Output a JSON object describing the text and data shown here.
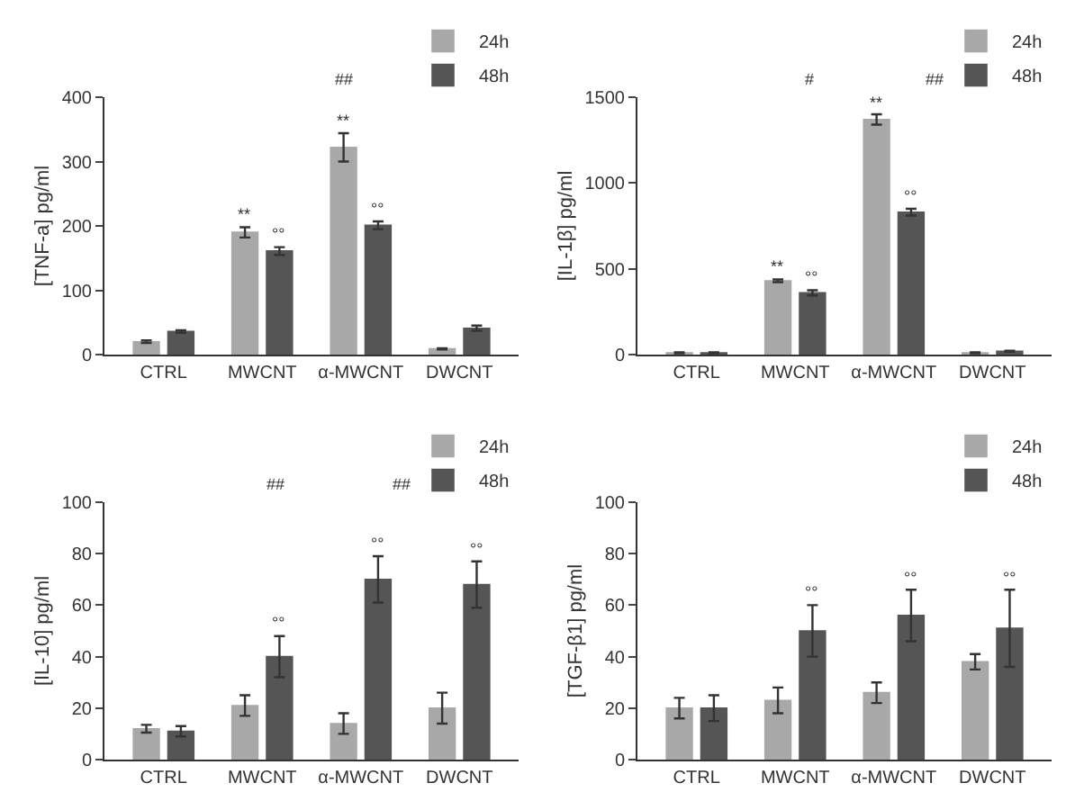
{
  "chart_data": [
    {
      "type": "bar",
      "ylabel": "[TNF-a] pg/ml",
      "categories": [
        "CTRL",
        "MWCNT",
        "α-MWCNT",
        "DWCNT"
      ],
      "ylim": [
        0,
        400
      ],
      "yticks": [
        0,
        100,
        200,
        300,
        400
      ],
      "legend": "top right",
      "series": [
        {
          "name": "24h",
          "color": "#a8a8a8",
          "values": [
            20,
            190,
            322,
            9
          ],
          "errors": [
            2,
            8,
            22,
            1
          ],
          "value_labels": [
            null,
            "**",
            "**",
            null
          ]
        },
        {
          "name": "48h",
          "color": "#555555",
          "values": [
            36,
            161,
            201,
            41
          ],
          "errors": [
            2,
            6,
            6,
            4
          ],
          "value_labels": [
            null,
            "°°",
            "°°",
            null
          ]
        }
      ],
      "annotations": [
        "##"
      ]
    },
    {
      "type": "bar",
      "ylabel": "[IL-1β] pg/ml",
      "categories": [
        "CTRL",
        "MWCNT",
        "α-MWCNT",
        "DWCNT"
      ],
      "ylim": [
        0,
        1500
      ],
      "yticks": [
        0,
        500,
        1000,
        1500
      ],
      "legend": "top right",
      "series": [
        {
          "name": "24h",
          "color": "#a8a8a8",
          "values": [
            10,
            430,
            1370,
            10
          ],
          "errors": [
            3,
            8,
            30,
            3
          ],
          "value_labels": [
            null,
            "**",
            "**",
            null
          ]
        },
        {
          "name": "48h",
          "color": "#555555",
          "values": [
            10,
            360,
            830,
            20
          ],
          "errors": [
            3,
            15,
            20,
            3
          ],
          "value_labels": [
            null,
            "°°",
            "°°",
            null
          ]
        }
      ],
      "annotations": [
        "#",
        "##"
      ]
    },
    {
      "type": "bar",
      "ylabel": "[IL-10] pg/ml",
      "categories": [
        "CTRL",
        "MWCNT",
        "α-MWCNT",
        "DWCNT"
      ],
      "ylim": [
        0,
        100
      ],
      "yticks": [
        0,
        20,
        40,
        60,
        80,
        100
      ],
      "legend": "top right",
      "series": [
        {
          "name": "24h",
          "color": "#a8a8a8",
          "values": [
            12,
            21,
            14,
            20
          ],
          "errors": [
            1.5,
            4,
            4,
            6
          ]
        },
        {
          "name": "48h",
          "color": "#555555",
          "values": [
            11,
            40,
            70,
            68
          ],
          "errors": [
            2,
            8,
            9,
            9
          ],
          "value_labels": [
            null,
            "°°",
            "°°",
            "°°"
          ]
        }
      ],
      "annotations": [
        "##",
        "##"
      ]
    },
    {
      "type": "bar",
      "ylabel": "[TGF-β1] pg/ml",
      "categories": [
        "CTRL",
        "MWCNT",
        "α-MWCNT",
        "DWCNT"
      ],
      "ylim": [
        0,
        100
      ],
      "yticks": [
        0,
        20,
        40,
        60,
        80,
        100
      ],
      "legend": "top right",
      "series": [
        {
          "name": "24h",
          "color": "#a8a8a8",
          "values": [
            20,
            23,
            26,
            38
          ],
          "errors": [
            4,
            5,
            4,
            3
          ]
        },
        {
          "name": "48h",
          "color": "#555555",
          "values": [
            20,
            50,
            56,
            51
          ],
          "errors": [
            5,
            10,
            10,
            15
          ],
          "value_labels": [
            null,
            "°°",
            "°°",
            "°°"
          ]
        }
      ]
    }
  ]
}
